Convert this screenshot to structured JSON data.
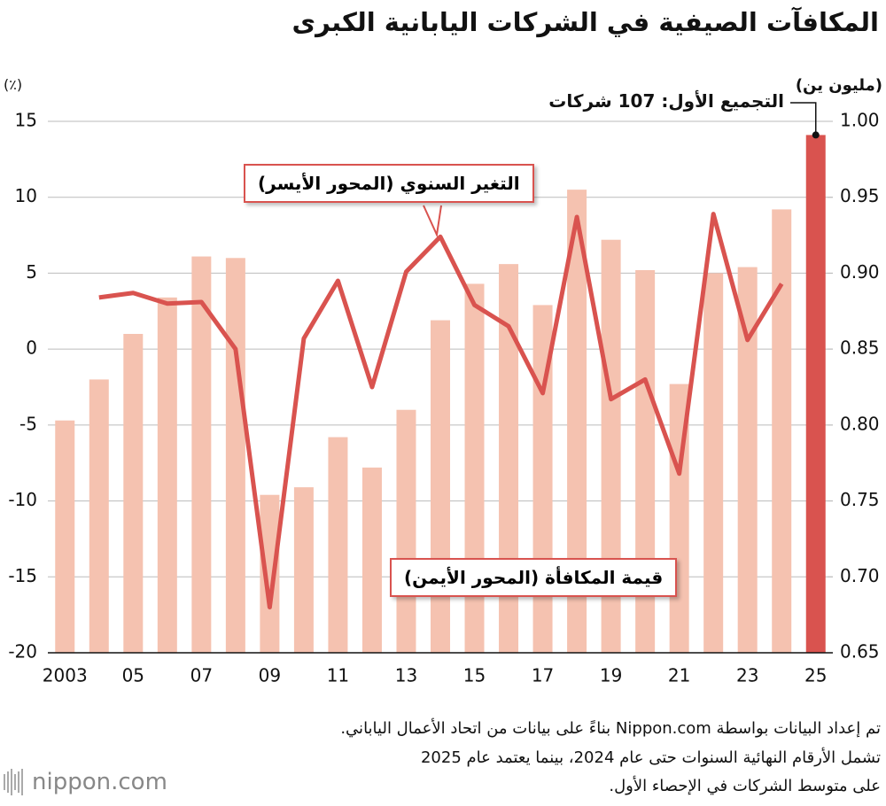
{
  "chart_data": {
    "type": "combo",
    "title": "المكافآت الصيفية في الشركات اليابانية الكبرى",
    "y_label": "(٪)",
    "y2_label": "(مليون ين)",
    "categories": [
      "2003",
      null,
      "05",
      null,
      "07",
      null,
      "09",
      null,
      "11",
      null,
      "13",
      null,
      "15",
      null,
      "17",
      null,
      "19",
      null,
      "21",
      null,
      "23",
      null,
      "25"
    ],
    "series": [
      {
        "name": "قيمة المكافأة (المحور الأيمن)",
        "type": "bar",
        "axis": "y2",
        "color": "#f5c2b0",
        "colors": [
          "#f5c2b0",
          "#f5c2b0",
          "#f5c2b0",
          "#f5c2b0",
          "#f5c2b0",
          "#f5c2b0",
          "#f5c2b0",
          "#f5c2b0",
          "#f5c2b0",
          "#f5c2b0",
          "#f5c2b0",
          "#f5c2b0",
          "#f5c2b0",
          "#f5c2b0",
          "#f5c2b0",
          "#f5c2b0",
          "#f5c2b0",
          "#f5c2b0",
          "#f5c2b0",
          "#f5c2b0",
          "#f5c2b0",
          "#f5c2b0",
          "#d9534f"
        ],
        "values": [
          0.803,
          0.83,
          0.86,
          0.884,
          0.911,
          0.91,
          0.754,
          0.759,
          0.792,
          0.772,
          0.81,
          0.869,
          0.893,
          0.906,
          0.879,
          0.955,
          0.922,
          0.902,
          0.827,
          0.9,
          0.904,
          0.942,
          0.991
        ]
      },
      {
        "name": "التغير السنوي (المحور الأيسر)",
        "type": "line",
        "axis": "y",
        "color": "#d9534f",
        "values": [
          null,
          3.4,
          3.7,
          3.0,
          3.1,
          0.0,
          -17.0,
          0.7,
          4.5,
          -2.5,
          5.1,
          7.4,
          2.9,
          1.5,
          -2.9,
          8.7,
          -3.3,
          -2.0,
          -8.2,
          8.9,
          0.6,
          4.3,
          null
        ]
      }
    ],
    "annotation": "التجميع الأول: 107 شركات",
    "ylim": [
      -20,
      15
    ],
    "yticks": [
      -20,
      -15,
      -10,
      -5,
      0,
      5,
      10,
      15
    ],
    "y2lim": [
      0.65,
      1.0
    ],
    "y2ticks": [
      0.65,
      {
        "value": 0.7,
        "label": "0.70"
      },
      0.75,
      {
        "value": 0.8,
        "label": "0.80"
      },
      0.85,
      {
        "value": 0.9,
        "label": "0.90"
      },
      0.95,
      {
        "value": 1.0,
        "label": "1.00"
      }
    ],
    "grid": true,
    "notes": [
      "تم إعداد البيانات بواسطة Nippon.com بناءً على بيانات من اتحاد الأعمال الياباني.",
      "تشمل الأرقام النهائية السنوات حتى عام 2024، بينما يعتمد عام 2025",
      "على متوسط الشركات في الإحصاء الأول."
    ],
    "logo": "nippon.com"
  }
}
